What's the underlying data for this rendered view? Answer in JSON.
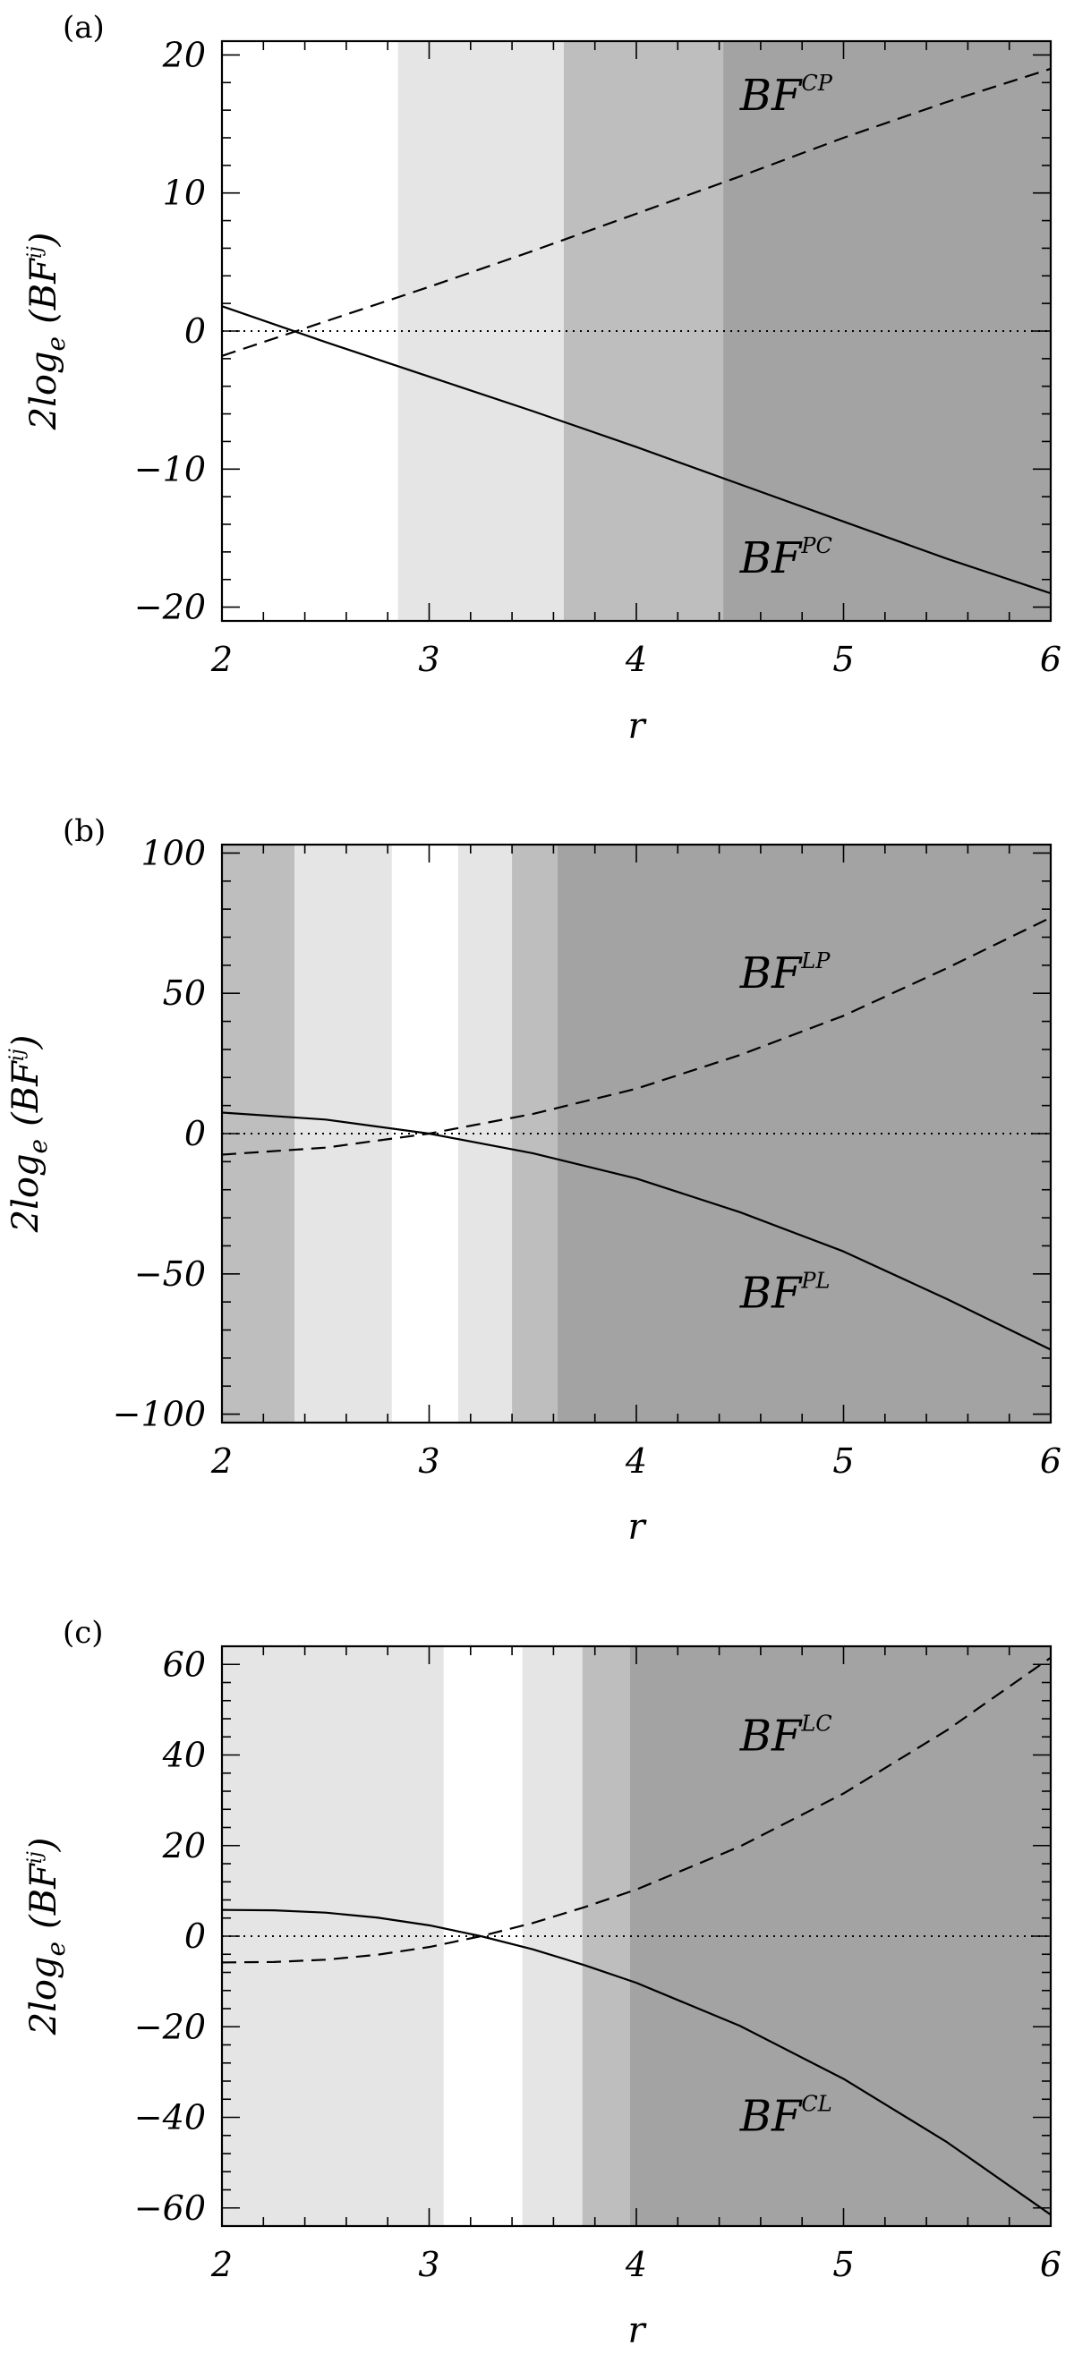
{
  "chart_data": [
    {
      "type": "line",
      "panel_label": "(a)",
      "xlabel": "r",
      "ylabel": "2log",
      "ylabel_sub": "e",
      "ylabel_paren_base": "(BF",
      "ylabel_paren_sup": "ij",
      "ylabel_close": ")",
      "xlim": [
        2,
        6
      ],
      "ylim": [
        -21,
        21
      ],
      "xticks": [
        2,
        3,
        4,
        5,
        6
      ],
      "yticks": [
        -20,
        -10,
        0,
        10,
        20
      ],
      "ytick_labels": [
        "−20",
        "−10",
        "0",
        "10",
        "20"
      ],
      "bands": [
        {
          "x0": 2.0,
          "x1": 2.85,
          "color": "#ffffff"
        },
        {
          "x0": 2.85,
          "x1": 3.65,
          "color": "#e5e5e5"
        },
        {
          "x0": 3.65,
          "x1": 4.42,
          "color": "#bebebe"
        },
        {
          "x0": 4.42,
          "x1": 6.0,
          "color": "#a3a3a3"
        }
      ],
      "series": [
        {
          "style": "dashed",
          "x": [
            2,
            2.5,
            3,
            3.5,
            4,
            4.5,
            5,
            5.5,
            6
          ],
          "values": [
            -1.8,
            0.7,
            3.2,
            5.8,
            8.5,
            11.2,
            14.0,
            16.6,
            19.0
          ]
        },
        {
          "style": "solid",
          "x": [
            2,
            2.5,
            3,
            3.5,
            4,
            4.5,
            5,
            5.5,
            6
          ],
          "values": [
            1.8,
            -0.8,
            -3.3,
            -5.8,
            -8.4,
            -11.1,
            -13.8,
            -16.5,
            -19.0
          ]
        },
        {
          "style": "dotted",
          "x": [
            2,
            6
          ],
          "values": [
            0,
            0
          ]
        }
      ],
      "annotations": [
        {
          "base": "BF",
          "sup": "CP",
          "x": 4.5,
          "y": 16.0
        },
        {
          "base": "BF",
          "sup": "PC",
          "x": 4.5,
          "y": -17.5
        }
      ]
    },
    {
      "type": "line",
      "panel_label": "(b)",
      "xlabel": "r",
      "ylabel": "2log",
      "ylabel_sub": "e",
      "ylabel_paren_base": "(BF",
      "ylabel_paren_sup": "ij",
      "ylabel_close": ")",
      "xlim": [
        2,
        6
      ],
      "ylim": [
        -103,
        103
      ],
      "xticks": [
        2,
        3,
        4,
        5,
        6
      ],
      "yticks": [
        -100,
        -50,
        0,
        50,
        100
      ],
      "ytick_labels": [
        "−100",
        "−50",
        "0",
        "50",
        "100"
      ],
      "bands": [
        {
          "x0": 2.0,
          "x1": 2.35,
          "color": "#bebebe"
        },
        {
          "x0": 2.35,
          "x1": 2.82,
          "color": "#e5e5e5"
        },
        {
          "x0": 2.82,
          "x1": 3.14,
          "color": "#ffffff"
        },
        {
          "x0": 3.14,
          "x1": 3.4,
          "color": "#e5e5e5"
        },
        {
          "x0": 3.4,
          "x1": 3.62,
          "color": "#bebebe"
        },
        {
          "x0": 3.62,
          "x1": 6.0,
          "color": "#a3a3a3"
        }
      ],
      "series": [
        {
          "style": "dashed",
          "x": [
            2,
            2.5,
            3,
            3.5,
            4,
            4.5,
            5,
            5.5,
            6
          ],
          "values": [
            -7.5,
            -5.0,
            0.0,
            7.0,
            16.0,
            28.0,
            42.0,
            59.0,
            77.0
          ]
        },
        {
          "style": "solid",
          "x": [
            2,
            2.5,
            3,
            3.5,
            4,
            4.5,
            5,
            5.5,
            6
          ],
          "values": [
            7.5,
            5.0,
            0.0,
            -7.0,
            -16.0,
            -28.0,
            -42.0,
            -59.0,
            -77.0
          ]
        },
        {
          "style": "dotted",
          "x": [
            2,
            6
          ],
          "values": [
            0,
            0
          ]
        }
      ],
      "annotations": [
        {
          "base": "BF",
          "sup": "LP",
          "x": 4.5,
          "y": 52.0
        },
        {
          "base": "BF",
          "sup": "PL",
          "x": 4.5,
          "y": -62.0
        }
      ]
    },
    {
      "type": "line",
      "panel_label": "(c)",
      "xlabel": "r",
      "ylabel": "2log",
      "ylabel_sub": "e",
      "ylabel_paren_base": "(BF",
      "ylabel_paren_sup": "ij",
      "ylabel_close": ")",
      "xlim": [
        2,
        6
      ],
      "ylim": [
        -64,
        64
      ],
      "xticks": [
        2,
        3,
        4,
        5,
        6
      ],
      "yticks": [
        -60,
        -40,
        -20,
        0,
        20,
        40,
        60
      ],
      "ytick_labels": [
        "−60",
        "−40",
        "−20",
        "0",
        "20",
        "40",
        "60"
      ],
      "bands": [
        {
          "x0": 2.0,
          "x1": 3.07,
          "color": "#e5e5e5"
        },
        {
          "x0": 3.07,
          "x1": 3.45,
          "color": "#ffffff"
        },
        {
          "x0": 3.45,
          "x1": 3.74,
          "color": "#e5e5e5"
        },
        {
          "x0": 3.74,
          "x1": 3.97,
          "color": "#bebebe"
        },
        {
          "x0": 3.97,
          "x1": 6.0,
          "color": "#a3a3a3"
        }
      ],
      "series": [
        {
          "style": "dashed",
          "x": [
            2,
            2.25,
            2.5,
            2.75,
            3,
            3.25,
            3.5,
            3.75,
            4,
            4.5,
            5,
            5.5,
            6
          ],
          "values": [
            -5.8,
            -5.7,
            -5.2,
            -4.1,
            -2.4,
            0.0,
            2.9,
            6.4,
            10.3,
            19.8,
            31.5,
            45.5,
            61.5
          ]
        },
        {
          "style": "solid",
          "x": [
            2,
            2.25,
            2.5,
            2.75,
            3,
            3.25,
            3.5,
            3.75,
            4,
            4.5,
            5,
            5.5,
            6
          ],
          "values": [
            5.8,
            5.7,
            5.2,
            4.1,
            2.4,
            0.0,
            -2.9,
            -6.4,
            -10.3,
            -19.8,
            -31.5,
            -45.5,
            -61.5
          ]
        },
        {
          "style": "dotted",
          "x": [
            2,
            6
          ],
          "values": [
            0,
            0
          ]
        }
      ],
      "annotations": [
        {
          "base": "BF",
          "sup": "LC",
          "x": 4.5,
          "y": 41.0
        },
        {
          "base": "BF",
          "sup": "CL",
          "x": 4.5,
          "y": -43.0
        }
      ]
    }
  ]
}
